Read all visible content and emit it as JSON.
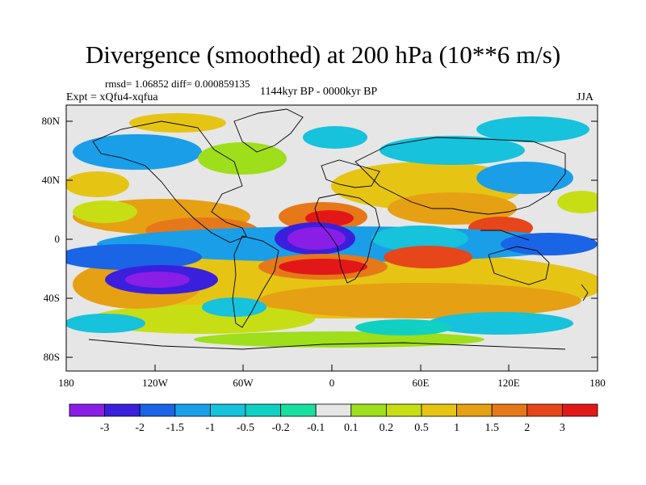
{
  "title": "Divergence (smoothed) at 200 hPa (10**6 m/s)",
  "stats": "rmsd= 1.06852 diff= 0.000859135",
  "experiment": "Expt = xQfu4-xqfua",
  "period": "1144kyr BP - 0000kyr BP",
  "season": "JJA",
  "y_axis_labels": [
    "80N",
    "40N",
    "0",
    "40S",
    "80S"
  ],
  "x_axis_labels": [
    "180",
    "120W",
    "60W",
    "0",
    "60E",
    "120E",
    "180"
  ],
  "colorbar": {
    "labels": [
      "-3",
      "-2",
      "-1.5",
      "-1",
      "-0.5",
      "-0.2",
      "-0.1",
      "0.1",
      "0.2",
      "0.5",
      "1",
      "1.5",
      "2",
      "3"
    ],
    "colors": [
      "#8a1ee6",
      "#3a20dc",
      "#1a64e6",
      "#1a9ee8",
      "#16c2dc",
      "#10d0c2",
      "#18dea0",
      "#e6e6e6",
      "#9ede1a",
      "#c8de14",
      "#e6c414",
      "#e6a014",
      "#e6781a",
      "#e6461a",
      "#e21818"
    ]
  }
}
